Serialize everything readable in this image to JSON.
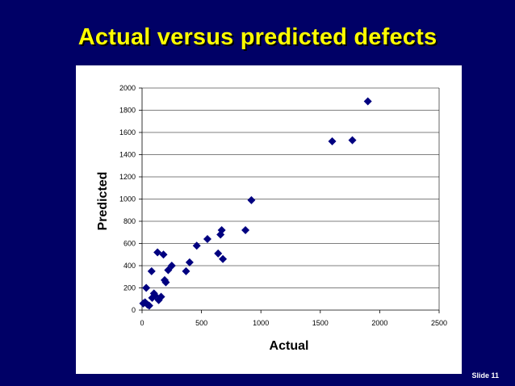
{
  "slide": {
    "title": "Actual versus predicted defects",
    "number_label": "Slide 11"
  },
  "colors": {
    "background": "#000066",
    "title": "#ffff00",
    "marker": "#000080",
    "grid": "#000000"
  },
  "chart_data": {
    "type": "scatter",
    "title": "",
    "xlabel": "Actual",
    "ylabel": "Predicted",
    "xlim": [
      0,
      2500
    ],
    "ylim": [
      0,
      2000
    ],
    "xticks": [
      0,
      500,
      1000,
      1500,
      2000,
      2500
    ],
    "yticks": [
      0,
      200,
      400,
      600,
      800,
      1000,
      1200,
      1400,
      1600,
      1800,
      2000
    ],
    "grid": "horizontal",
    "legend": "none",
    "marker": "diamond",
    "points": [
      {
        "x": 10,
        "y": 60
      },
      {
        "x": 25,
        "y": 70
      },
      {
        "x": 35,
        "y": 200
      },
      {
        "x": 45,
        "y": 50
      },
      {
        "x": 60,
        "y": 40
      },
      {
        "x": 80,
        "y": 350
      },
      {
        "x": 85,
        "y": 110
      },
      {
        "x": 100,
        "y": 150
      },
      {
        "x": 110,
        "y": 130
      },
      {
        "x": 130,
        "y": 520
      },
      {
        "x": 140,
        "y": 90
      },
      {
        "x": 160,
        "y": 120
      },
      {
        "x": 180,
        "y": 500
      },
      {
        "x": 190,
        "y": 270
      },
      {
        "x": 200,
        "y": 250
      },
      {
        "x": 220,
        "y": 360
      },
      {
        "x": 250,
        "y": 400
      },
      {
        "x": 370,
        "y": 350
      },
      {
        "x": 400,
        "y": 430
      },
      {
        "x": 460,
        "y": 580
      },
      {
        "x": 550,
        "y": 640
      },
      {
        "x": 640,
        "y": 510
      },
      {
        "x": 660,
        "y": 680
      },
      {
        "x": 670,
        "y": 720
      },
      {
        "x": 680,
        "y": 460
      },
      {
        "x": 870,
        "y": 720
      },
      {
        "x": 920,
        "y": 990
      },
      {
        "x": 1600,
        "y": 1520
      },
      {
        "x": 1770,
        "y": 1530
      },
      {
        "x": 1900,
        "y": 1880
      }
    ]
  }
}
